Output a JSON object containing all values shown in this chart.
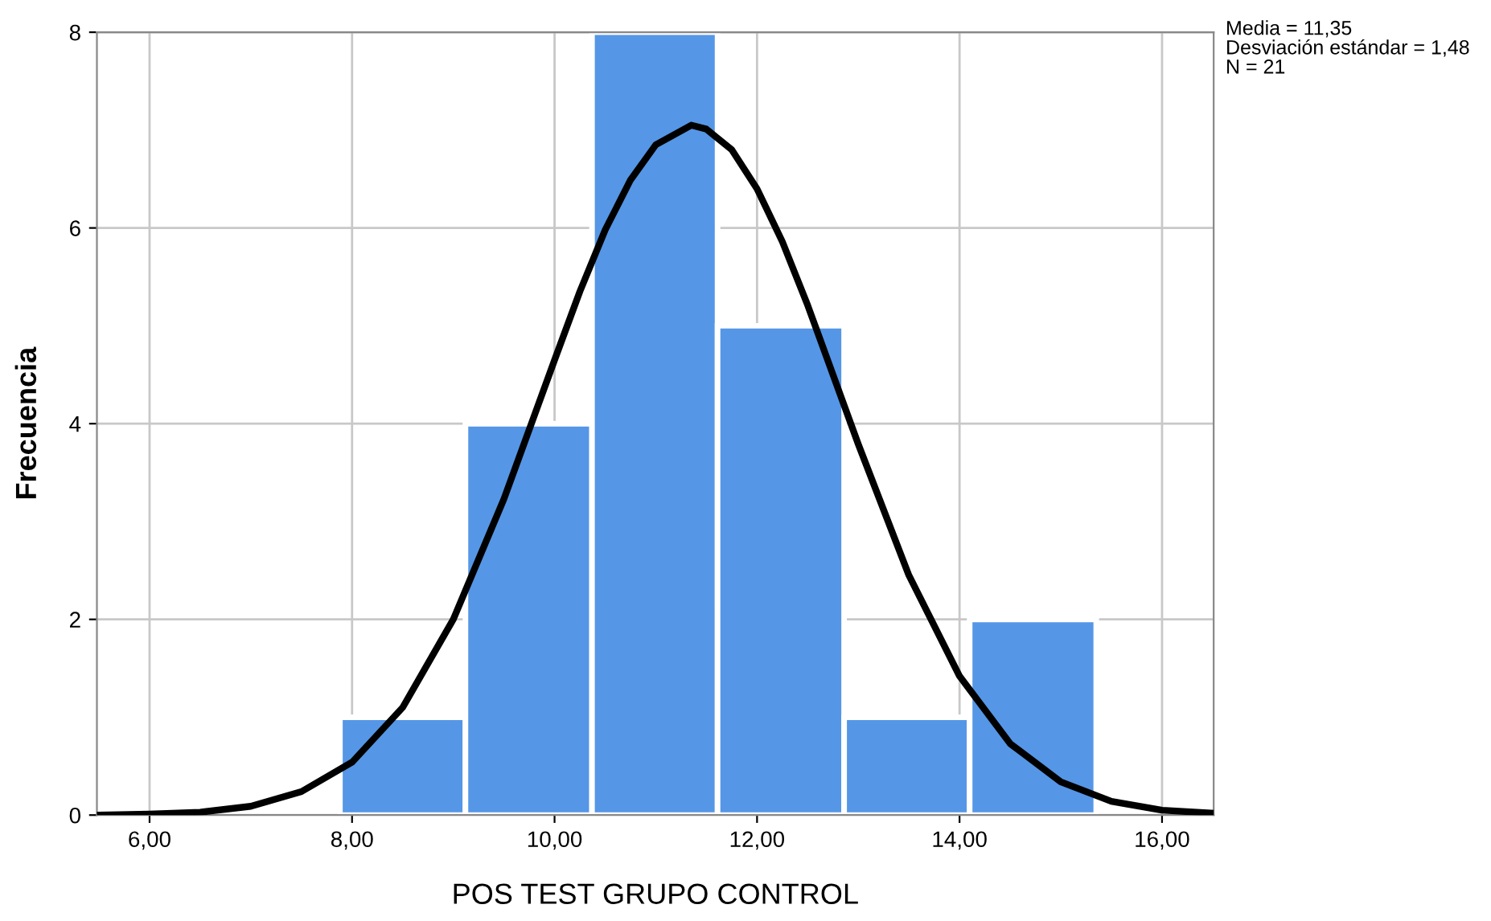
{
  "chart_data": {
    "type": "histogram",
    "xlabel": "POS TEST GRUPO CONTROL",
    "ylabel": "Frecuencia",
    "bins": [
      7.88,
      9.12,
      10.37,
      11.61,
      12.86,
      14.1,
      15.35
    ],
    "values": [
      1,
      4,
      8,
      5,
      1,
      2
    ],
    "color": "#5596e6",
    "series": [
      {
        "type": "line",
        "color": "#000000",
        "x": [
          5.5,
          6.0,
          6.5,
          7.0,
          7.5,
          8.0,
          8.5,
          9.0,
          9.5,
          10.0,
          10.25,
          10.5,
          10.75,
          11.0,
          11.35,
          11.5,
          11.75,
          12.0,
          12.25,
          12.5,
          13.0,
          13.5,
          14.0,
          14.5,
          15.0,
          15.5,
          16.0,
          16.5
        ],
        "values": [
          0.0,
          0.01,
          0.03,
          0.09,
          0.24,
          0.54,
          1.1,
          2.0,
          3.23,
          4.65,
          5.35,
          5.98,
          6.49,
          6.85,
          7.05,
          7.01,
          6.8,
          6.4,
          5.86,
          5.21,
          3.79,
          2.45,
          1.42,
          0.73,
          0.34,
          0.14,
          0.05,
          0.02
        ]
      }
    ],
    "xlim": [
      5.48,
      16.51
    ],
    "ylim": [
      0,
      8
    ],
    "xticks": [
      {
        "value": 6,
        "label": "6,00"
      },
      {
        "value": 8,
        "label": "8,00"
      },
      {
        "value": 10,
        "label": "10,00"
      },
      {
        "value": 12,
        "label": "12,00"
      },
      {
        "value": 14,
        "label": "14,00"
      },
      {
        "value": 16,
        "label": "16,00"
      }
    ],
    "yticks": [
      0,
      2,
      4,
      6,
      8
    ],
    "grid": true,
    "annotations": [
      "Media = 11,35",
      "Desviación estándar = 1,48",
      "N = 21"
    ]
  }
}
